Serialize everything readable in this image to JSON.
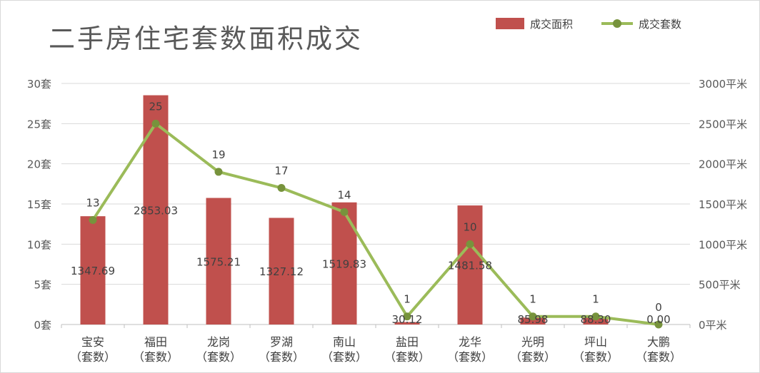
{
  "chart_data": {
    "type": "bar+line",
    "title": "二手房住宅套数面积成交",
    "categories": [
      [
        "宝安",
        "（套数）"
      ],
      [
        "福田",
        "（套数）"
      ],
      [
        "龙岗",
        "（套数）"
      ],
      [
        "罗湖",
        "（套数）"
      ],
      [
        "南山",
        "（套数）"
      ],
      [
        "盐田",
        "（套数）"
      ],
      [
        "龙华",
        "（套数）"
      ],
      [
        "光明",
        "（套数）"
      ],
      [
        "坪山",
        "（套数）"
      ],
      [
        "大鹏",
        "（套数）"
      ]
    ],
    "series": [
      {
        "name": "成交面积",
        "type": "bar",
        "axis": "right",
        "color": "#c0504d",
        "values": [
          1347.69,
          2853.03,
          1575.21,
          1327.12,
          1519.83,
          30.12,
          1481.58,
          85.98,
          88.3,
          0
        ],
        "labels": [
          "1347.69",
          "2853.03",
          "1575.21",
          "1327.12",
          "1519.83",
          "30.12",
          "1481.58",
          "85.98",
          "88.30",
          "0.00"
        ]
      },
      {
        "name": "成交套数",
        "type": "line",
        "axis": "left",
        "color": "#9bbb59",
        "marker_color": "#77933c",
        "values": [
          13,
          25,
          19,
          17,
          14,
          1,
          10,
          1,
          1,
          0
        ],
        "labels": [
          "13",
          "25",
          "19",
          "17",
          "14",
          "1",
          "10",
          "1",
          "1",
          "0"
        ]
      }
    ],
    "y_left": {
      "range": [
        0,
        30
      ],
      "ticks": [
        "0套",
        "5套",
        "10套",
        "15套",
        "20套",
        "25套",
        "30套"
      ]
    },
    "y_right": {
      "range": [
        0,
        3000
      ],
      "ticks": [
        "0平米",
        "500平米",
        "1000平米",
        "1500平米",
        "2000平米",
        "2500平米",
        "3000平米"
      ]
    },
    "grid": true,
    "legend_position": "top-right"
  }
}
